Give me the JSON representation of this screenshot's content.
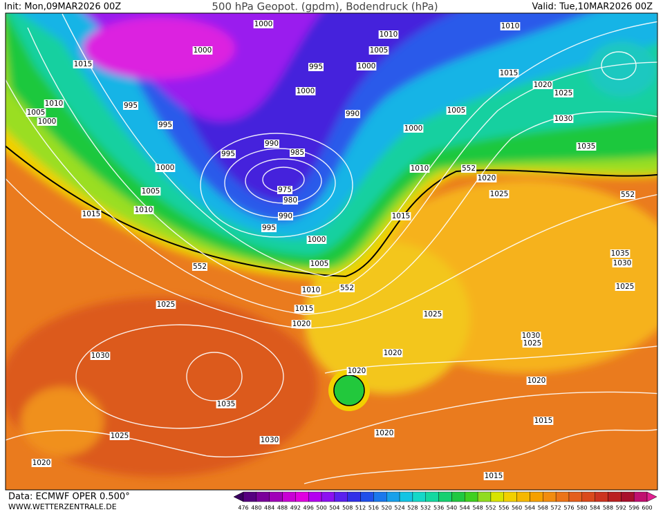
{
  "header": {
    "init": "Init: Mon,09MAR2026 00Z",
    "title": "500 hPa Geopot. (gpdm), Bodendruck (hPa)",
    "valid": "Valid: Tue,10MAR2026 00Z"
  },
  "footer": {
    "data_source": "Data: ECMWF OPER 0.500°",
    "website": "WWW.WETTERZENTRALE.DE"
  },
  "colorbar": {
    "labels": [
      "476",
      "480",
      "484",
      "488",
      "492",
      "496",
      "500",
      "504",
      "508",
      "512",
      "516",
      "520",
      "524",
      "528",
      "532",
      "536",
      "540",
      "544",
      "548",
      "552",
      "556",
      "560",
      "564",
      "568",
      "572",
      "576",
      "580",
      "584",
      "588",
      "592",
      "596",
      "600"
    ]
  },
  "isobar_labels": [
    "1000",
    "1010",
    "1010",
    "1000",
    "1005",
    "1015",
    "995",
    "1000",
    "1015",
    "1020",
    "1025",
    "1010",
    "995",
    "1000",
    "990",
    "1005",
    "1005",
    "1000",
    "1030",
    "995",
    "1000",
    "990",
    "985",
    "995",
    "1035",
    "1000",
    "1010",
    "552",
    "1020",
    "1005",
    "975",
    "1025",
    "980",
    "552",
    "1010",
    "1015",
    "990",
    "1015",
    "995",
    "1000",
    "1035",
    "1030",
    "1005",
    "552",
    "1025",
    "1010",
    "552",
    "1015",
    "1025",
    "1025",
    "1020",
    "1030",
    "1025",
    "1020",
    "1030",
    "1020",
    "1020",
    "1035",
    "1015",
    "1020",
    "1025",
    "1030",
    "1020",
    "1015"
  ]
}
